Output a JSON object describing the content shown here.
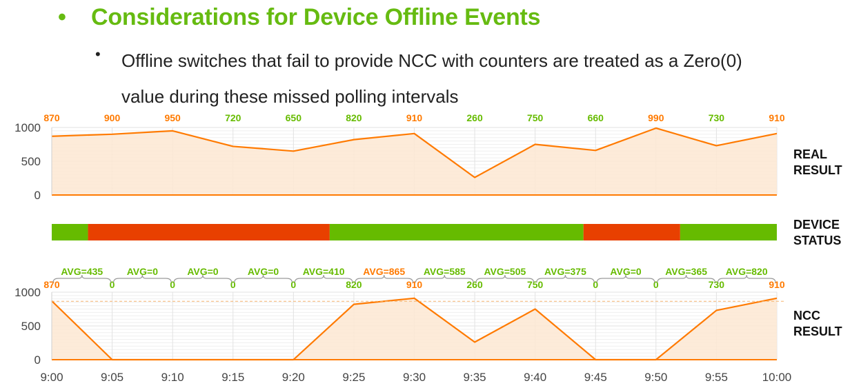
{
  "header": {
    "bullet": "•",
    "title": "Considerations for Device Offline Events",
    "sub_bullet": "•",
    "subtext": "Offline switches that fail to provide NCC with counters are treated as a Zero(0) value during these missed polling intervals"
  },
  "labels": {
    "real_line1": "REAL",
    "real_line2": "RESULT",
    "status_line1": "DEVICE",
    "status_line2": "STATUS",
    "ncc_line1": "NCC",
    "ncc_line2": "RESULT"
  },
  "colors": {
    "green": "#66bb00",
    "orange": "#ff7a00",
    "red": "#e84000",
    "fill": "#fde8d2",
    "grid": "#e2e2e2"
  },
  "chart_data": [
    {
      "type": "area",
      "name": "REAL RESULT",
      "x": [
        "9:00",
        "9:05",
        "9:10",
        "9:15",
        "9:20",
        "9:25",
        "9:30",
        "9:35",
        "9:40",
        "9:45",
        "9:50",
        "9:55",
        "10:00"
      ],
      "values": [
        870,
        900,
        950,
        720,
        650,
        820,
        910,
        260,
        750,
        660,
        990,
        730,
        910
      ],
      "value_label_colors": [
        "orange",
        "orange",
        "orange",
        "green",
        "green",
        "green",
        "orange",
        "green",
        "green",
        "green",
        "orange",
        "green",
        "orange"
      ],
      "yticks": [
        "1000",
        "500",
        "0"
      ],
      "ylim": [
        0,
        1000
      ]
    },
    {
      "type": "bar",
      "name": "DEVICE STATUS",
      "segments": [
        {
          "status": "online",
          "from": "9:00",
          "to": "9:03"
        },
        {
          "status": "offline",
          "from": "9:03",
          "to": "9:23"
        },
        {
          "status": "online",
          "from": "9:23",
          "to": "9:44"
        },
        {
          "status": "offline",
          "from": "9:44",
          "to": "9:52"
        },
        {
          "status": "online",
          "from": "9:52",
          "to": "10:00"
        }
      ]
    },
    {
      "type": "area",
      "name": "NCC RESULT",
      "x": [
        "9:00",
        "9:05",
        "9:10",
        "9:15",
        "9:20",
        "9:25",
        "9:30",
        "9:35",
        "9:40",
        "9:45",
        "9:50",
        "9:55",
        "10:00"
      ],
      "xtick_labels": [
        "9:00",
        "9:05",
        "9:10",
        "9:15",
        "9:20",
        "9:25",
        "9:30",
        "9:35",
        "9:40",
        "9:45",
        "9:50",
        "9:55",
        "10:00"
      ],
      "values": [
        870,
        0,
        0,
        0,
        0,
        820,
        910,
        260,
        750,
        0,
        0,
        730,
        910
      ],
      "value_labels": [
        "870",
        "0",
        "0",
        "0",
        "0",
        "820",
        "910",
        "260",
        "750",
        "0",
        "0",
        "730",
        "910"
      ],
      "value_label_colors": [
        "orange",
        "green",
        "green",
        "green",
        "green",
        "green",
        "orange",
        "green",
        "green",
        "green",
        "green",
        "green",
        "orange"
      ],
      "interval_averages": [
        "AVG=435",
        "AVG=0",
        "AVG=0",
        "AVG=0",
        "AVG=410",
        "AVG=865",
        "AVG=585",
        "AVG=505",
        "AVG=375",
        "AVG=0",
        "AVG=365",
        "AVG=820"
      ],
      "interval_average_colors": [
        "green",
        "green",
        "green",
        "green",
        "green",
        "orange",
        "green",
        "green",
        "green",
        "green",
        "green",
        "green"
      ],
      "reference_line": 865,
      "yticks": [
        "1000",
        "500",
        "0"
      ],
      "ylim": [
        0,
        1000
      ]
    }
  ]
}
